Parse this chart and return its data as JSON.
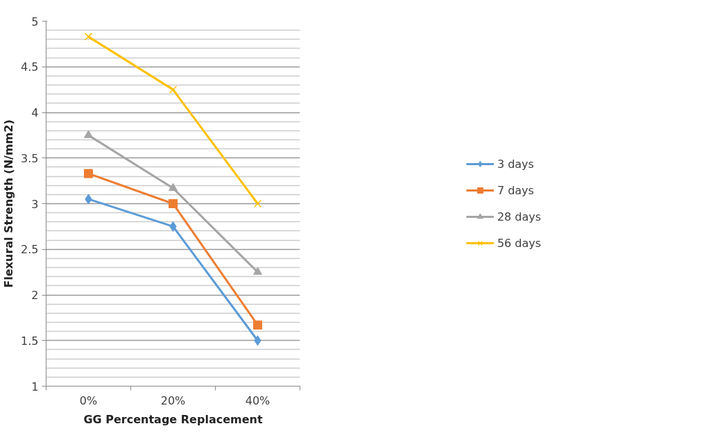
{
  "chart_data": {
    "type": "line",
    "xlabel": "GG Percentage Replacement",
    "ylabel": "Flexural Strength (N/mm2)",
    "categories": [
      "0%",
      "20%",
      "40%"
    ],
    "series": [
      {
        "name": "3 days",
        "color": "#5b9bd5",
        "marker": "diamond",
        "values": [
          3.05,
          2.75,
          1.5
        ]
      },
      {
        "name": "7 days",
        "color": "#ed7d31",
        "marker": "square",
        "values": [
          3.33,
          3.0,
          1.67
        ]
      },
      {
        "name": "28 days",
        "color": "#a5a5a5",
        "marker": "triangle",
        "values": [
          3.75,
          3.17,
          2.25
        ]
      },
      {
        "name": "56 days",
        "color": "#ffc000",
        "marker": "cross",
        "values": [
          4.83,
          4.25,
          3.0
        ]
      }
    ],
    "ylim": [
      1,
      5
    ],
    "yticks": [
      1,
      1.5,
      2,
      2.5,
      3,
      3.5,
      4,
      4.5,
      5
    ],
    "grid": "y",
    "legend": "right",
    "line_style": "solid"
  }
}
